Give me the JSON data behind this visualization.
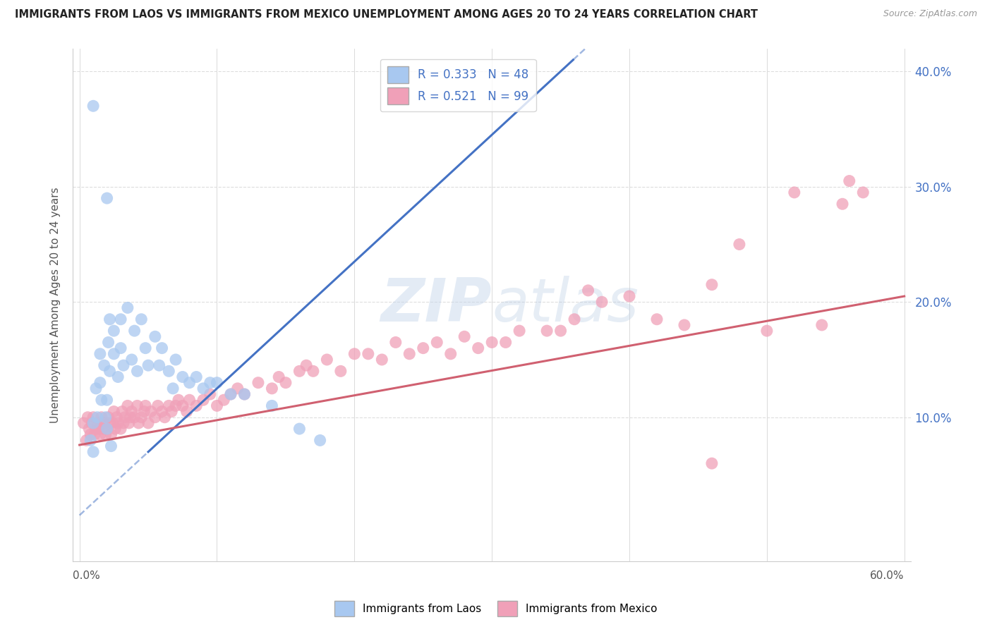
{
  "title": "IMMIGRANTS FROM LAOS VS IMMIGRANTS FROM MEXICO UNEMPLOYMENT AMONG AGES 20 TO 24 YEARS CORRELATION CHART",
  "source": "Source: ZipAtlas.com",
  "ylabel": "Unemployment Among Ages 20 to 24 years",
  "legend_laos": "Immigrants from Laos",
  "legend_mexico": "Immigrants from Mexico",
  "R_laos": 0.333,
  "N_laos": 48,
  "R_mexico": 0.521,
  "N_mexico": 99,
  "color_laos": "#A8C8F0",
  "color_mexico": "#F0A0B8",
  "line_color_laos": "#4472C4",
  "line_color_mexico": "#D06070",
  "xlim": [
    -0.005,
    0.605
  ],
  "ylim": [
    -0.025,
    0.42
  ],
  "ytick_positions": [
    0.1,
    0.2,
    0.3,
    0.4
  ],
  "ytick_labels": [
    "10.0%",
    "20.0%",
    "30.0%",
    "40.0%"
  ],
  "background_color": "#FFFFFF",
  "grid_color": "#DDDDDD",
  "laos_x": [
    0.008,
    0.01,
    0.01,
    0.012,
    0.013,
    0.015,
    0.015,
    0.016,
    0.018,
    0.019,
    0.02,
    0.02,
    0.021,
    0.022,
    0.022,
    0.023,
    0.025,
    0.025,
    0.028,
    0.03,
    0.03,
    0.032,
    0.035,
    0.038,
    0.04,
    0.042,
    0.045,
    0.048,
    0.05,
    0.055,
    0.058,
    0.06,
    0.065,
    0.068,
    0.07,
    0.075,
    0.08,
    0.085,
    0.09,
    0.095,
    0.1,
    0.11,
    0.12,
    0.14,
    0.16,
    0.175,
    0.01,
    0.02
  ],
  "laos_y": [
    0.08,
    0.095,
    0.07,
    0.125,
    0.1,
    0.155,
    0.13,
    0.115,
    0.145,
    0.1,
    0.09,
    0.115,
    0.165,
    0.185,
    0.14,
    0.075,
    0.155,
    0.175,
    0.135,
    0.185,
    0.16,
    0.145,
    0.195,
    0.15,
    0.175,
    0.14,
    0.185,
    0.16,
    0.145,
    0.17,
    0.145,
    0.16,
    0.14,
    0.125,
    0.15,
    0.135,
    0.13,
    0.135,
    0.125,
    0.13,
    0.13,
    0.12,
    0.12,
    0.11,
    0.09,
    0.08,
    0.37,
    0.29
  ],
  "mexico_x": [
    0.003,
    0.005,
    0.006,
    0.007,
    0.008,
    0.009,
    0.01,
    0.011,
    0.012,
    0.013,
    0.014,
    0.015,
    0.016,
    0.017,
    0.018,
    0.019,
    0.02,
    0.021,
    0.022,
    0.023,
    0.024,
    0.025,
    0.026,
    0.027,
    0.028,
    0.03,
    0.031,
    0.032,
    0.033,
    0.035,
    0.036,
    0.037,
    0.038,
    0.04,
    0.042,
    0.043,
    0.045,
    0.047,
    0.048,
    0.05,
    0.052,
    0.055,
    0.057,
    0.06,
    0.062,
    0.065,
    0.067,
    0.07,
    0.072,
    0.075,
    0.078,
    0.08,
    0.085,
    0.09,
    0.095,
    0.1,
    0.105,
    0.11,
    0.115,
    0.12,
    0.13,
    0.14,
    0.145,
    0.15,
    0.16,
    0.165,
    0.17,
    0.18,
    0.19,
    0.2,
    0.21,
    0.22,
    0.23,
    0.24,
    0.25,
    0.26,
    0.27,
    0.28,
    0.29,
    0.3,
    0.31,
    0.32,
    0.34,
    0.35,
    0.36,
    0.37,
    0.38,
    0.4,
    0.42,
    0.44,
    0.46,
    0.48,
    0.5,
    0.52,
    0.54,
    0.555,
    0.56,
    0.57,
    0.46
  ],
  "mexico_y": [
    0.095,
    0.08,
    0.1,
    0.09,
    0.085,
    0.095,
    0.1,
    0.085,
    0.09,
    0.095,
    0.09,
    0.085,
    0.1,
    0.09,
    0.095,
    0.085,
    0.09,
    0.1,
    0.095,
    0.085,
    0.095,
    0.105,
    0.09,
    0.1,
    0.095,
    0.09,
    0.105,
    0.095,
    0.1,
    0.11,
    0.095,
    0.1,
    0.105,
    0.1,
    0.11,
    0.095,
    0.1,
    0.105,
    0.11,
    0.095,
    0.105,
    0.1,
    0.11,
    0.105,
    0.1,
    0.11,
    0.105,
    0.11,
    0.115,
    0.11,
    0.105,
    0.115,
    0.11,
    0.115,
    0.12,
    0.11,
    0.115,
    0.12,
    0.125,
    0.12,
    0.13,
    0.125,
    0.135,
    0.13,
    0.14,
    0.145,
    0.14,
    0.15,
    0.14,
    0.155,
    0.155,
    0.15,
    0.165,
    0.155,
    0.16,
    0.165,
    0.155,
    0.17,
    0.16,
    0.165,
    0.165,
    0.175,
    0.175,
    0.175,
    0.185,
    0.21,
    0.2,
    0.205,
    0.185,
    0.18,
    0.215,
    0.25,
    0.175,
    0.295,
    0.18,
    0.285,
    0.305,
    0.295,
    0.06
  ],
  "laos_line_x0": 0.05,
  "laos_line_y0": 0.07,
  "laos_line_slope": 1.1,
  "mexico_line_x0": 0.0,
  "mexico_line_y0": 0.076,
  "mexico_line_x1": 0.6,
  "mexico_line_y1": 0.205
}
